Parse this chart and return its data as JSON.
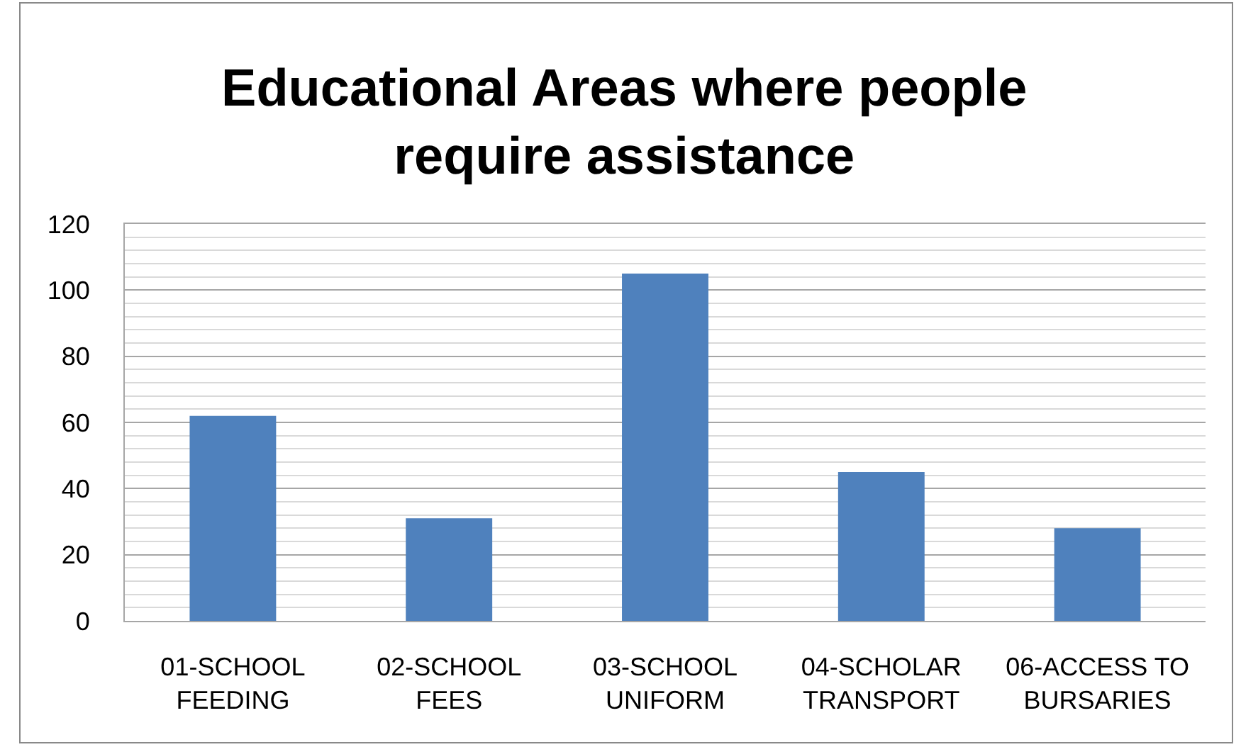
{
  "chart_data": {
    "type": "bar",
    "title": "Educational Areas where people\nrequire assistance",
    "categories": [
      "01-SCHOOL\nFEEDING",
      "02-SCHOOL\nFEES",
      "03-SCHOOL\nUNIFORM",
      "04-SCHOLAR\nTRANSPORT",
      "06-ACCESS TO\nBURSARIES"
    ],
    "values": [
      62,
      31,
      105,
      45,
      28
    ],
    "color": "#4f81bd",
    "ylim": [
      0,
      120
    ],
    "yticks": [
      0,
      {
        "value": 4,
        "label": null
      },
      {
        "value": 8,
        "label": null
      },
      {
        "value": 12,
        "label": null
      },
      {
        "value": 16,
        "label": null
      },
      20,
      {
        "value": 24,
        "label": null
      },
      {
        "value": 28,
        "label": null
      },
      {
        "value": 32,
        "label": null
      },
      {
        "value": 36,
        "label": null
      },
      40,
      {
        "value": 44,
        "label": null
      },
      {
        "value": 48,
        "label": null
      },
      {
        "value": 52,
        "label": null
      },
      {
        "value": 56,
        "label": null
      },
      60,
      {
        "value": 64,
        "label": null
      },
      {
        "value": 68,
        "label": null
      },
      {
        "value": 72,
        "label": null
      },
      {
        "value": 76,
        "label": null
      },
      80,
      {
        "value": 84,
        "label": null
      },
      {
        "value": 88,
        "label": null
      },
      {
        "value": 92,
        "label": null
      },
      {
        "value": 96,
        "label": null
      },
      100,
      {
        "value": 104,
        "label": null
      },
      {
        "value": 108,
        "label": null
      },
      {
        "value": 112,
        "label": null
      },
      {
        "value": 116,
        "label": null
      },
      120
    ],
    "grid": "y"
  }
}
